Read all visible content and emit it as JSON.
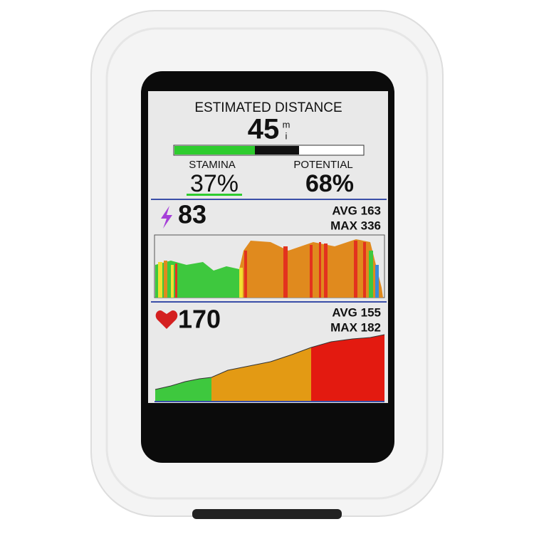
{
  "screen": {
    "distance": {
      "label": "ESTIMATED DISTANCE",
      "value": "45",
      "unit_top": "m",
      "unit_bottom": "i"
    },
    "stamina": {
      "label": "STAMINA",
      "value": "37%"
    },
    "potential": {
      "label": "POTENTIAL",
      "value": "68%"
    },
    "power": {
      "value": "83",
      "avg": "AVG 163",
      "max": "MAX 336"
    },
    "heart_rate": {
      "value": "170",
      "avg": "AVG 155",
      "max": "MAX 182"
    }
  }
}
